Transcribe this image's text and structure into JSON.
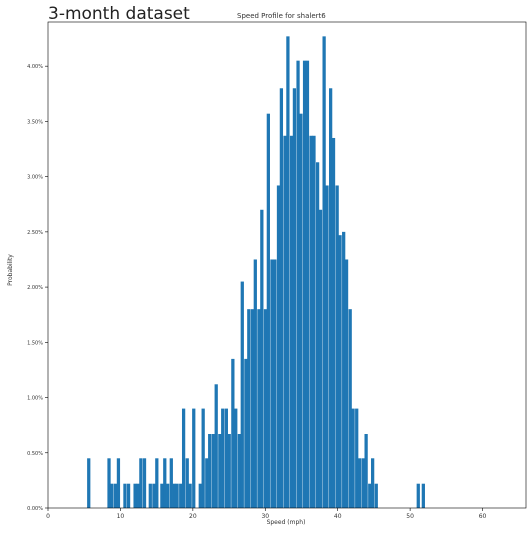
{
  "header": {
    "title": "3-month dataset"
  },
  "chart_data": {
    "type": "bar",
    "title": "Speed Profile for shalert6",
    "xlabel": "Speed (mph)",
    "ylabel": "Probability",
    "xlim": [
      0,
      66
    ],
    "ylim": [
      0,
      4.4
    ],
    "x_ticks": [
      0,
      10,
      20,
      30,
      40,
      50,
      60
    ],
    "y_ticks": [
      0.0,
      0.5,
      1.0,
      1.5,
      2.0,
      2.5,
      3.0,
      3.5,
      4.0
    ],
    "y_tick_labels": [
      "0.00%",
      "0.50%",
      "1.00%",
      "1.50%",
      "2.00%",
      "2.50%",
      "3.00%",
      "3.50%",
      "4.00%"
    ],
    "bin_width": 0.45,
    "color": "#1f77b4",
    "x": [
      5.4,
      8.2,
      8.6,
      9.1,
      9.5,
      10.0,
      10.4,
      10.9,
      11.3,
      11.8,
      12.2,
      12.6,
      13.1,
      13.5,
      13.9,
      14.4,
      14.8,
      15.5,
      15.9,
      16.3,
      16.8,
      17.2,
      17.6,
      18.1,
      18.5,
      19.0,
      19.4,
      19.9,
      20.3,
      20.8,
      21.2,
      21.7,
      22.1,
      22.6,
      23.0,
      23.5,
      23.9,
      24.4,
      24.8,
      25.3,
      25.7,
      26.2,
      26.6,
      27.1,
      27.5,
      28.0,
      28.4,
      28.9,
      29.3,
      29.8,
      30.2,
      30.7,
      31.1,
      31.6,
      32.0,
      32.5,
      32.9,
      33.4,
      33.8,
      34.3,
      34.7,
      35.2,
      35.6,
      36.1,
      36.5,
      37.0,
      37.4,
      37.9,
      38.3,
      38.8,
      39.2,
      39.7,
      40.1,
      40.6,
      41.0,
      41.5,
      41.9,
      42.4,
      42.8,
      43.3,
      43.7,
      44.2,
      44.6,
      45.1,
      50.9,
      51.6
    ],
    "values": [
      0.45,
      0.45,
      0.22,
      0.22,
      0.45,
      0.0,
      0.22,
      0.22,
      0.0,
      0.22,
      0.22,
      0.45,
      0.45,
      0.0,
      0.22,
      0.22,
      0.45,
      0.22,
      0.45,
      0.22,
      0.45,
      0.22,
      0.22,
      0.22,
      0.9,
      0.45,
      0.22,
      0.9,
      0.0,
      0.22,
      0.9,
      0.45,
      0.67,
      0.67,
      1.12,
      0.67,
      0.9,
      0.9,
      0.67,
      1.35,
      0.9,
      0.67,
      2.05,
      1.35,
      1.8,
      1.8,
      2.25,
      1.8,
      2.7,
      1.8,
      3.57,
      2.25,
      2.25,
      2.92,
      3.8,
      3.37,
      4.27,
      3.37,
      3.8,
      4.05,
      3.57,
      4.05,
      4.05,
      3.37,
      3.37,
      3.13,
      2.7,
      4.27,
      2.92,
      3.8,
      3.35,
      2.92,
      2.47,
      2.5,
      2.25,
      1.8,
      0.9,
      0.9,
      0.45,
      0.45,
      0.67,
      0.22,
      0.45,
      0.22,
      0.22,
      0.22
    ]
  }
}
